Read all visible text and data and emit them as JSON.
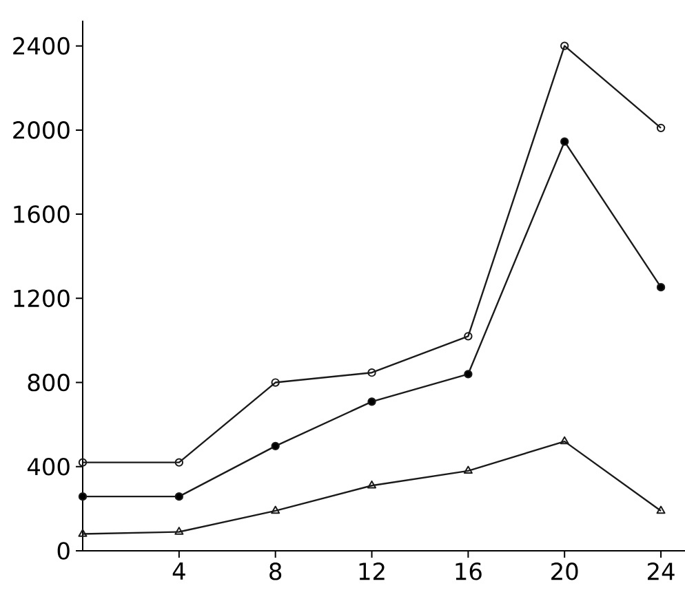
{
  "chart_data": {
    "type": "line",
    "x": [
      0,
      4,
      8,
      12,
      16,
      20,
      24
    ],
    "series": [
      {
        "color": "#1a1a1a",
        "marker": "open circle",
        "values": [
          420,
          420,
          800,
          847,
          1020,
          2400,
          2010
        ]
      },
      {
        "color": "#1a1a1a",
        "marker": "circle",
        "values": [
          258,
          258,
          498,
          709,
          840,
          1945,
          1253
        ]
      },
      {
        "color": "#1a1a1a",
        "marker": "triangle",
        "values": [
          80,
          90,
          190,
          310,
          380,
          520,
          190
        ]
      }
    ],
    "xlim": [
      0,
      25
    ],
    "ylim": [
      0,
      2520
    ],
    "xticks": [
      4,
      8,
      12,
      16,
      20,
      24
    ],
    "yticks": [
      0,
      400,
      800,
      1200,
      1600,
      2000,
      2400
    ],
    "grid": false,
    "line_style": "solid"
  }
}
